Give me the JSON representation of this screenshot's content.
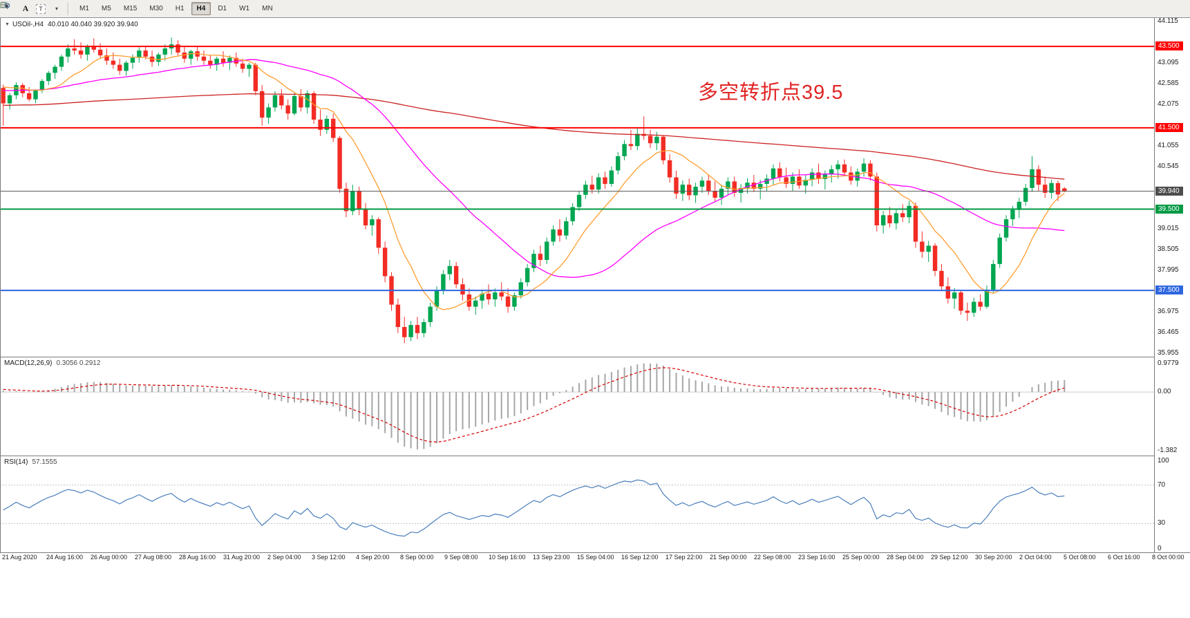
{
  "toolbar": {
    "tools": {
      "text_a": "A",
      "text_t": "T"
    },
    "timeframes": [
      "M1",
      "M5",
      "M15",
      "M30",
      "H1",
      "H4",
      "D1",
      "W1",
      "MN"
    ],
    "active_timeframe": "H4"
  },
  "colors": {
    "up": "#00a651",
    "down": "#f22c24",
    "current_price": "#555555",
    "badge_current": "#4d4d4d",
    "macd_hist": "#a6a6a6",
    "macd_signal": "#d40000",
    "rsi_line": "#4a7ebc",
    "level_dotted": "#c0c0c0"
  },
  "main_chart": {
    "symbol_label": "USOil-,H4",
    "ohlc_readout": "40.010 40.040 39.920 39.940",
    "annotation": {
      "text": "多空转折点39.5",
      "color": "#e12424"
    },
    "y_axis_ticks": [
      "44.115",
      "43.605",
      "43.095",
      "42.585",
      "42.075",
      "41.565",
      "41.055",
      "40.545",
      "40.035",
      "39.525",
      "39.015",
      "38.505",
      "37.995",
      "37.485",
      "36.975",
      "36.465",
      "35.955"
    ],
    "price_lines": [
      {
        "value": 43.5,
        "label": "43.500",
        "color": "#ff0000"
      },
      {
        "value": 41.5,
        "label": "41.500",
        "color": "#ff0000"
      },
      {
        "value": 39.5,
        "label": "39.500",
        "color": "#009a44"
      },
      {
        "value": 37.5,
        "label": "37.500",
        "color": "#2e66e0"
      }
    ],
    "current_price": {
      "value": 39.94,
      "label": "39.940"
    }
  },
  "chart_data": {
    "type": "candlestick",
    "title": "USOil-,H4",
    "timeframe": "H4",
    "y_range": [
      35.87,
      44.2
    ],
    "x_labels": [
      "21 Aug 2020",
      "24 Aug 16:00",
      "26 Aug 00:00",
      "27 Aug 08:00",
      "28 Aug 16:00",
      "31 Aug 20:00",
      "2 Sep 04:00",
      "3 Sep 12:00",
      "4 Sep 20:00",
      "8 Sep 00:00",
      "9 Sep 08:00",
      "10 Sep 16:00",
      "13 Sep 23:00",
      "15 Sep 04:00",
      "16 Sep 12:00",
      "17 Sep 22:00",
      "21 Sep 00:00",
      "22 Sep 08:00",
      "23 Sep 16:00",
      "25 Sep 00:00",
      "28 Sep 04:00",
      "29 Sep 12:00",
      "30 Sep 20:00",
      "2 Oct 04:00",
      "5 Oct 08:00",
      "6 Oct 16:00",
      "8 Oct 00:00"
    ],
    "moving_averages": [
      {
        "period": 160,
        "color": "#cc2222"
      },
      {
        "period": 34,
        "color": "#ff00ff"
      },
      {
        "period": 10,
        "color": "#ff9d2e"
      }
    ],
    "offscreen_history_estimate": {
      "count": 100,
      "start": 41.5,
      "end": 42.6,
      "wiggle": 0.1
    },
    "indicators": {
      "macd": {
        "label": "MACD(12,26,9)",
        "values_label": "0.3056 0.2912",
        "fast": 12,
        "slow": 26,
        "signal": 9,
        "axis_labels": [
          "0.9779",
          "0.00",
          "-1.382"
        ]
      },
      "rsi": {
        "label": "RSI(14)",
        "value_label": "57.1555",
        "period": 14,
        "levels": [
          70,
          30
        ],
        "axis_labels": [
          "100",
          "70",
          "30",
          "0"
        ]
      }
    },
    "bars": [
      [
        42.48,
        42.56,
        41.55,
        42.1
      ],
      [
        42.1,
        42.35,
        41.95,
        42.3
      ],
      [
        42.3,
        42.62,
        42.2,
        42.55
      ],
      [
        42.55,
        42.6,
        42.25,
        42.35
      ],
      [
        42.35,
        42.5,
        42.15,
        42.2
      ],
      [
        42.2,
        42.45,
        42.1,
        42.42
      ],
      [
        42.42,
        42.7,
        42.35,
        42.65
      ],
      [
        42.65,
        42.9,
        42.55,
        42.85
      ],
      [
        42.85,
        43.05,
        42.7,
        43.0
      ],
      [
        43.0,
        43.3,
        42.9,
        43.25
      ],
      [
        43.25,
        43.55,
        43.1,
        43.45
      ],
      [
        43.45,
        43.68,
        43.3,
        43.4
      ],
      [
        43.4,
        43.6,
        43.2,
        43.3
      ],
      [
        43.3,
        43.55,
        43.15,
        43.5
      ],
      [
        43.5,
        43.7,
        43.35,
        43.42
      ],
      [
        43.42,
        43.58,
        43.2,
        43.28
      ],
      [
        43.28,
        43.45,
        43.05,
        43.15
      ],
      [
        43.15,
        43.35,
        42.95,
        43.05
      ],
      [
        43.05,
        43.2,
        42.8,
        42.9
      ],
      [
        42.9,
        43.15,
        42.78,
        43.1
      ],
      [
        43.1,
        43.3,
        42.95,
        43.22
      ],
      [
        43.22,
        43.48,
        43.1,
        43.4
      ],
      [
        43.4,
        43.52,
        43.18,
        43.25
      ],
      [
        43.25,
        43.4,
        43.0,
        43.12
      ],
      [
        43.12,
        43.35,
        43.02,
        43.3
      ],
      [
        43.3,
        43.55,
        43.15,
        43.45
      ],
      [
        43.45,
        43.72,
        43.3,
        43.55
      ],
      [
        43.55,
        43.65,
        43.28,
        43.35
      ],
      [
        43.35,
        43.5,
        43.1,
        43.2
      ],
      [
        43.2,
        43.42,
        43.05,
        43.38
      ],
      [
        43.38,
        43.5,
        43.15,
        43.25
      ],
      [
        43.25,
        43.4,
        43.05,
        43.15
      ],
      [
        43.15,
        43.3,
        42.95,
        43.05
      ],
      [
        43.05,
        43.25,
        42.9,
        43.2
      ],
      [
        43.2,
        43.38,
        43.0,
        43.1
      ],
      [
        43.1,
        43.28,
        42.92,
        43.22
      ],
      [
        43.22,
        43.35,
        43.0,
        43.08
      ],
      [
        43.08,
        43.2,
        42.85,
        42.95
      ],
      [
        42.95,
        43.1,
        42.75,
        43.05
      ],
      [
        43.05,
        43.1,
        42.3,
        42.4
      ],
      [
        42.4,
        42.55,
        41.55,
        41.75
      ],
      [
        41.75,
        42.1,
        41.6,
        42.0
      ],
      [
        42.0,
        42.4,
        41.9,
        42.3
      ],
      [
        42.3,
        42.45,
        41.95,
        42.05
      ],
      [
        42.05,
        42.2,
        41.7,
        41.85
      ],
      [
        41.85,
        42.35,
        41.8,
        42.28
      ],
      [
        42.28,
        42.45,
        41.9,
        42.0
      ],
      [
        42.0,
        42.42,
        41.85,
        42.35
      ],
      [
        42.35,
        42.4,
        41.6,
        41.7
      ],
      [
        41.7,
        41.95,
        41.3,
        41.45
      ],
      [
        41.45,
        41.8,
        41.35,
        41.72
      ],
      [
        41.72,
        41.85,
        41.15,
        41.25
      ],
      [
        41.25,
        41.3,
        39.9,
        40.0
      ],
      [
        40.0,
        40.15,
        39.3,
        39.45
      ],
      [
        39.45,
        40.1,
        39.35,
        39.95
      ],
      [
        39.95,
        40.05,
        39.35,
        39.5
      ],
      [
        39.5,
        39.65,
        39.0,
        39.1
      ],
      [
        39.1,
        39.35,
        38.85,
        39.25
      ],
      [
        39.25,
        39.3,
        38.4,
        38.55
      ],
      [
        38.55,
        38.7,
        37.7,
        37.85
      ],
      [
        37.85,
        37.95,
        37.0,
        37.15
      ],
      [
        37.15,
        37.3,
        36.45,
        36.6
      ],
      [
        36.6,
        36.85,
        36.2,
        36.35
      ],
      [
        36.35,
        36.75,
        36.25,
        36.65
      ],
      [
        36.65,
        36.85,
        36.3,
        36.45
      ],
      [
        36.45,
        36.8,
        36.35,
        36.72
      ],
      [
        36.72,
        37.2,
        36.6,
        37.1
      ],
      [
        37.1,
        37.6,
        37.0,
        37.5
      ],
      [
        37.5,
        38.0,
        37.4,
        37.9
      ],
      [
        37.9,
        38.25,
        37.75,
        38.1
      ],
      [
        38.1,
        38.2,
        37.55,
        37.65
      ],
      [
        37.65,
        37.8,
        37.25,
        37.4
      ],
      [
        37.4,
        37.55,
        37.0,
        37.1
      ],
      [
        37.1,
        37.35,
        36.9,
        37.25
      ],
      [
        37.25,
        37.5,
        37.05,
        37.42
      ],
      [
        37.42,
        37.65,
        37.15,
        37.28
      ],
      [
        37.28,
        37.55,
        37.1,
        37.45
      ],
      [
        37.45,
        37.7,
        37.25,
        37.35
      ],
      [
        37.35,
        37.55,
        36.95,
        37.1
      ],
      [
        37.1,
        37.45,
        37.0,
        37.38
      ],
      [
        37.38,
        37.8,
        37.3,
        37.7
      ],
      [
        37.7,
        38.15,
        37.6,
        38.05
      ],
      [
        38.05,
        38.5,
        37.95,
        38.4
      ],
      [
        38.4,
        38.6,
        38.1,
        38.25
      ],
      [
        38.25,
        38.8,
        38.15,
        38.7
      ],
      [
        38.7,
        39.1,
        38.6,
        39.0
      ],
      [
        39.0,
        39.25,
        38.7,
        38.85
      ],
      [
        38.85,
        39.3,
        38.75,
        39.2
      ],
      [
        39.2,
        39.65,
        39.1,
        39.55
      ],
      [
        39.55,
        39.95,
        39.45,
        39.85
      ],
      [
        39.85,
        40.2,
        39.75,
        40.1
      ],
      [
        40.1,
        40.32,
        39.88,
        39.98
      ],
      [
        39.98,
        40.38,
        39.88,
        40.28
      ],
      [
        40.28,
        40.42,
        40.0,
        40.12
      ],
      [
        40.12,
        40.55,
        40.05,
        40.45
      ],
      [
        40.45,
        40.9,
        40.35,
        40.8
      ],
      [
        40.8,
        41.2,
        40.7,
        41.1
      ],
      [
        41.1,
        41.45,
        40.95,
        41.05
      ],
      [
        41.05,
        41.5,
        40.95,
        41.35
      ],
      [
        41.35,
        41.78,
        41.2,
        41.3
      ],
      [
        41.3,
        41.45,
        41.0,
        41.12
      ],
      [
        41.12,
        41.4,
        40.95,
        41.28
      ],
      [
        41.28,
        41.32,
        40.6,
        40.7
      ],
      [
        40.7,
        40.85,
        40.15,
        40.28
      ],
      [
        40.28,
        40.45,
        39.75,
        39.88
      ],
      [
        39.88,
        40.2,
        39.7,
        40.1
      ],
      [
        40.1,
        40.25,
        39.72,
        39.84
      ],
      [
        39.84,
        40.15,
        39.65,
        40.05
      ],
      [
        40.05,
        40.3,
        39.9,
        40.2
      ],
      [
        40.2,
        40.35,
        39.85,
        39.95
      ],
      [
        39.95,
        40.18,
        39.68,
        39.78
      ],
      [
        39.78,
        40.1,
        39.6,
        40.0
      ],
      [
        40.0,
        40.28,
        39.85,
        40.18
      ],
      [
        40.18,
        40.3,
        39.8,
        39.9
      ],
      [
        39.9,
        40.12,
        39.66,
        40.02
      ],
      [
        40.02,
        40.26,
        39.88,
        40.15
      ],
      [
        40.15,
        40.34,
        39.92,
        40.0
      ],
      [
        40.0,
        40.22,
        39.74,
        40.12
      ],
      [
        40.12,
        40.35,
        39.95,
        40.25
      ],
      [
        40.25,
        40.6,
        40.1,
        40.5
      ],
      [
        40.5,
        40.65,
        40.18,
        40.28
      ],
      [
        40.28,
        40.52,
        40.02,
        40.12
      ],
      [
        40.12,
        40.4,
        39.95,
        40.3
      ],
      [
        40.3,
        40.48,
        40.0,
        40.08
      ],
      [
        40.08,
        40.34,
        39.88,
        40.22
      ],
      [
        40.22,
        40.5,
        40.06,
        40.4
      ],
      [
        40.4,
        40.62,
        40.12,
        40.24
      ],
      [
        40.24,
        40.45,
        39.98,
        40.35
      ],
      [
        40.35,
        40.58,
        40.15,
        40.48
      ],
      [
        40.48,
        40.7,
        40.25,
        40.6
      ],
      [
        40.6,
        40.72,
        40.3,
        40.4
      ],
      [
        40.4,
        40.55,
        40.1,
        40.2
      ],
      [
        40.2,
        40.5,
        40.05,
        40.42
      ],
      [
        40.42,
        40.75,
        40.3,
        40.62
      ],
      [
        40.62,
        40.7,
        40.2,
        40.3
      ],
      [
        40.3,
        40.4,
        38.95,
        39.1
      ],
      [
        39.1,
        39.45,
        38.9,
        39.35
      ],
      [
        39.35,
        39.55,
        39.05,
        39.15
      ],
      [
        39.15,
        39.5,
        39.0,
        39.4
      ],
      [
        39.4,
        39.62,
        39.18,
        39.3
      ],
      [
        39.3,
        39.7,
        39.15,
        39.58
      ],
      [
        39.58,
        39.66,
        38.55,
        38.7
      ],
      [
        38.7,
        38.95,
        38.3,
        38.45
      ],
      [
        38.45,
        38.72,
        38.2,
        38.6
      ],
      [
        38.6,
        38.66,
        37.85,
        37.98
      ],
      [
        37.98,
        38.15,
        37.48,
        37.6
      ],
      [
        37.6,
        37.82,
        37.18,
        37.3
      ],
      [
        37.3,
        37.56,
        37.05,
        37.45
      ],
      [
        37.45,
        37.5,
        36.9,
        37.0
      ],
      [
        37.0,
        37.2,
        36.75,
        36.95
      ],
      [
        36.95,
        37.32,
        36.85,
        37.22
      ],
      [
        37.22,
        37.4,
        37.0,
        37.1
      ],
      [
        37.1,
        37.62,
        37.05,
        37.52
      ],
      [
        37.52,
        38.25,
        37.45,
        38.15
      ],
      [
        38.15,
        38.9,
        38.05,
        38.8
      ],
      [
        38.8,
        39.35,
        38.7,
        39.25
      ],
      [
        39.25,
        39.58,
        39.08,
        39.48
      ],
      [
        39.48,
        39.78,
        39.28,
        39.68
      ],
      [
        39.68,
        40.12,
        39.58,
        40.02
      ],
      [
        40.02,
        40.8,
        39.92,
        40.48
      ],
      [
        40.48,
        40.58,
        39.95,
        40.1
      ],
      [
        40.1,
        40.3,
        39.78,
        39.9
      ],
      [
        39.9,
        40.22,
        39.76,
        40.14
      ],
      [
        40.14,
        40.2,
        39.7,
        39.86
      ],
      [
        40.01,
        40.04,
        39.92,
        39.94
      ]
    ]
  }
}
